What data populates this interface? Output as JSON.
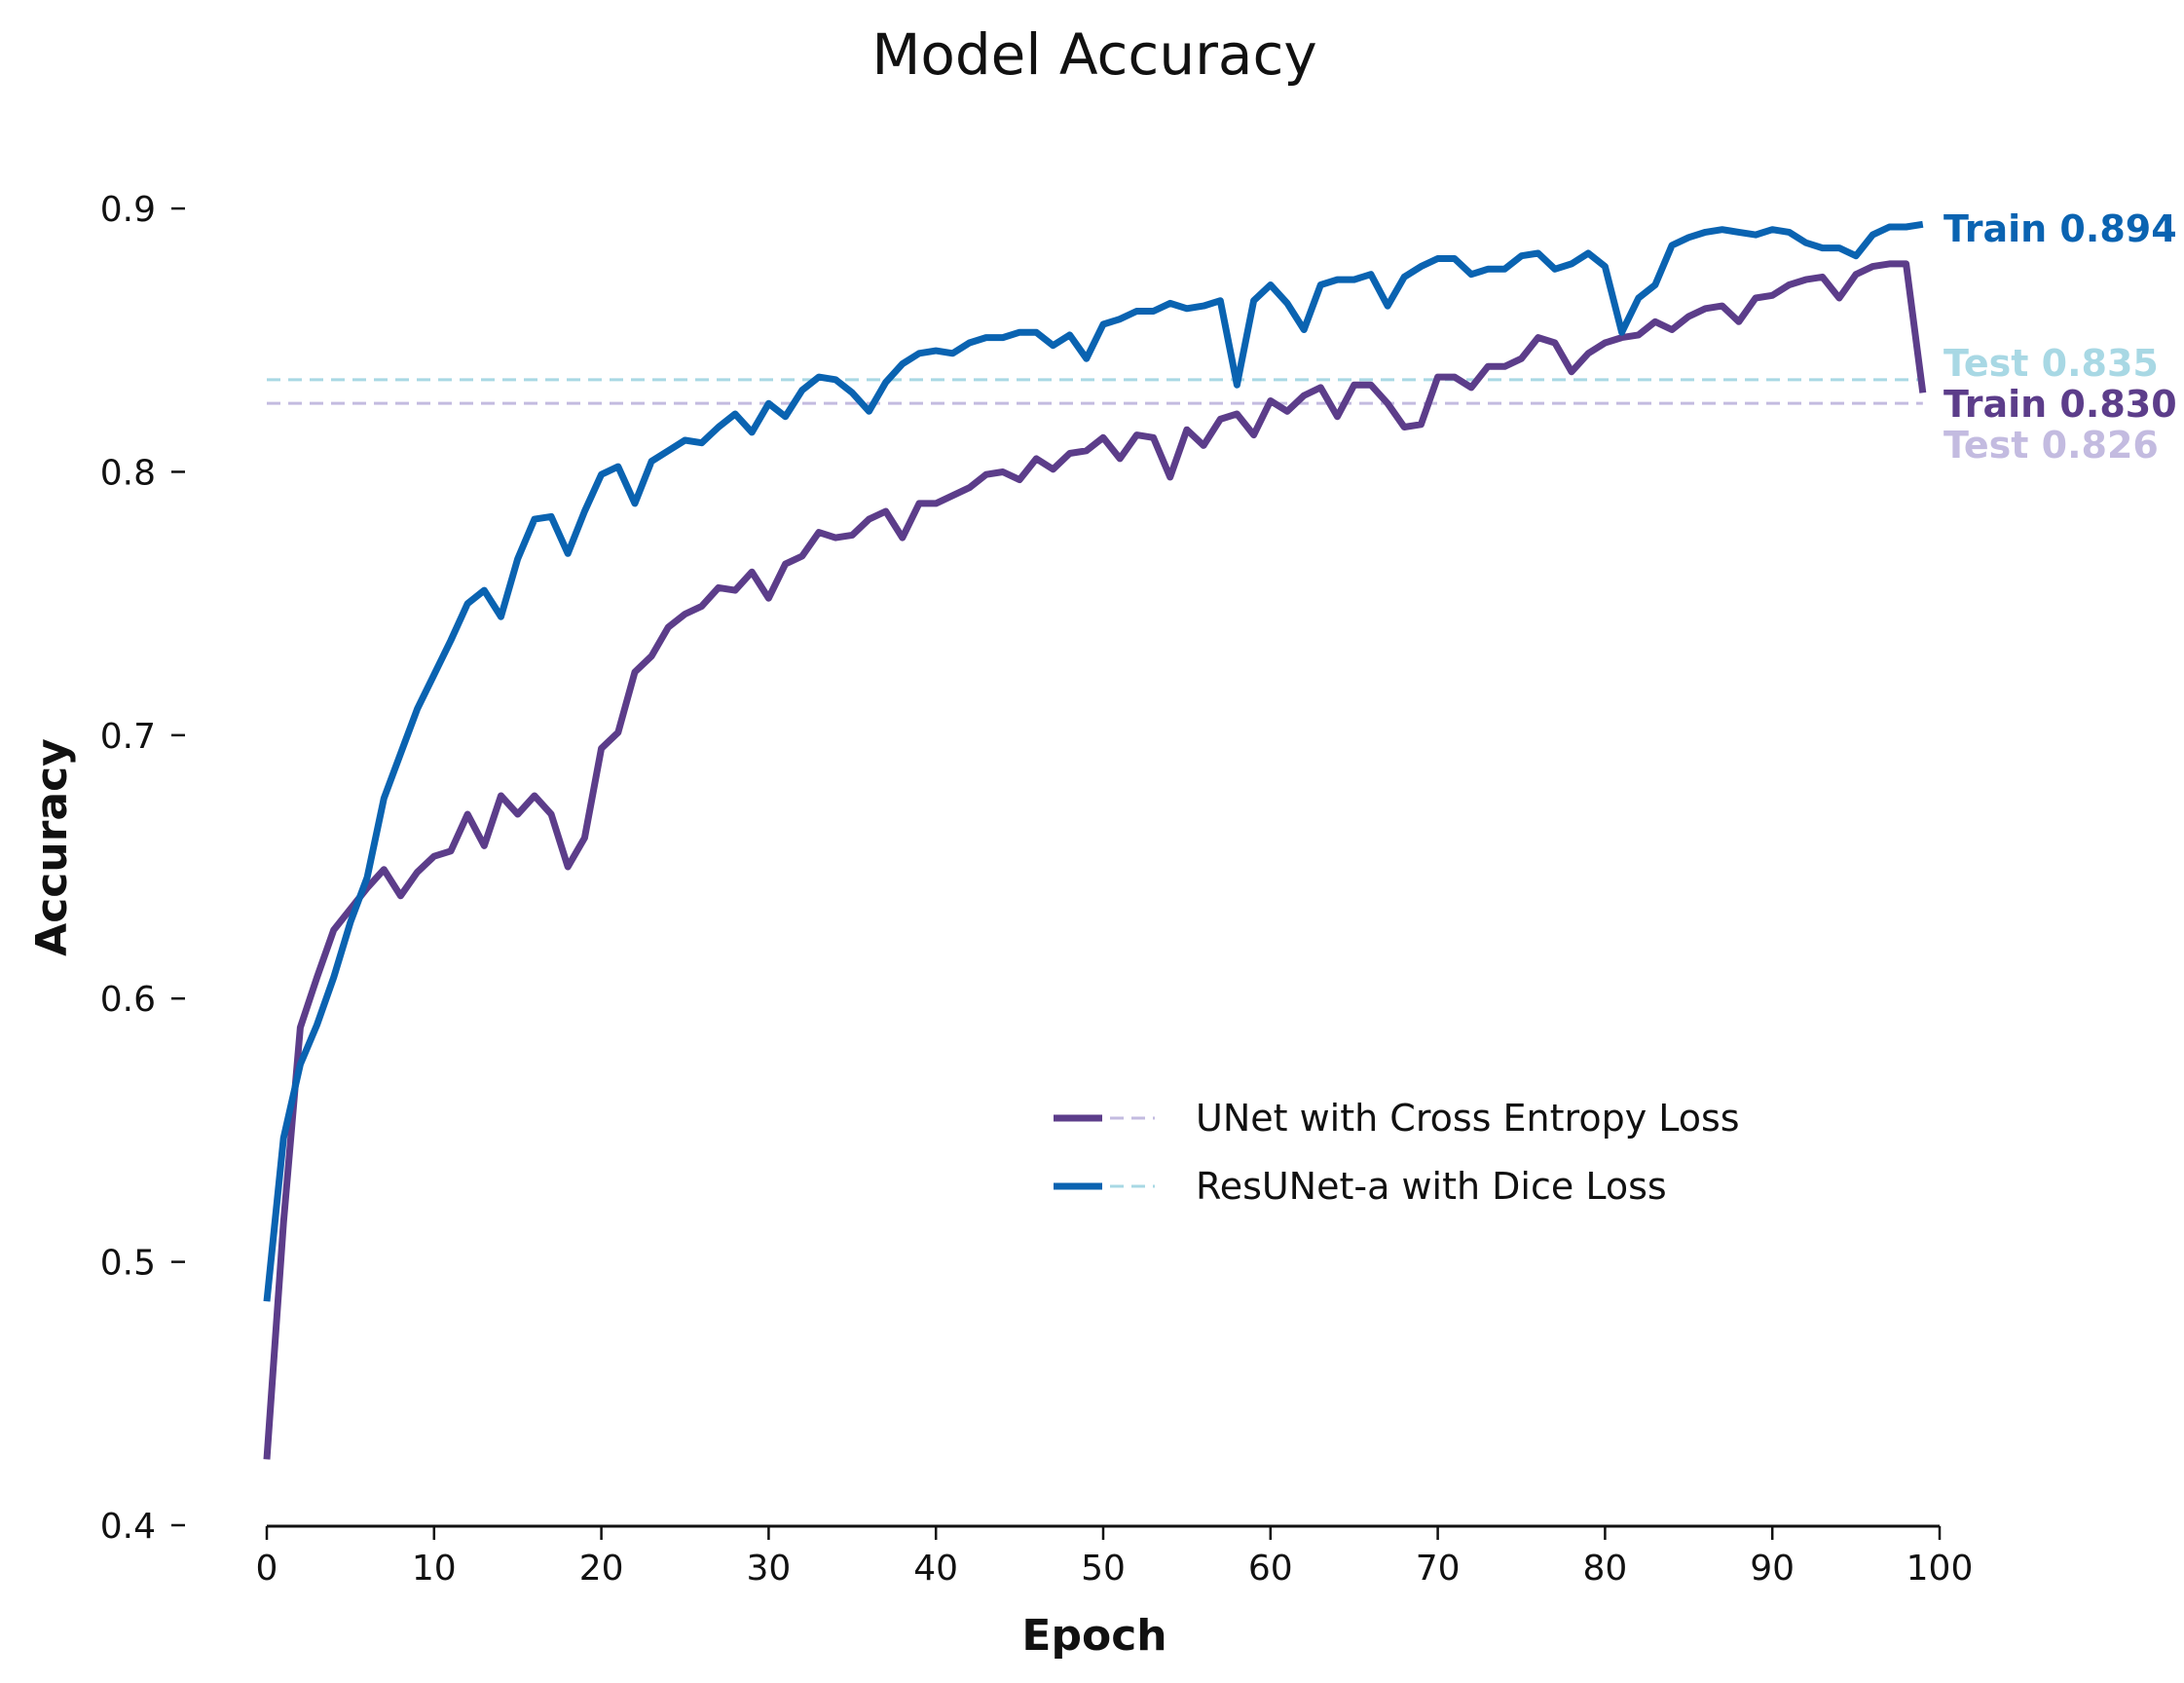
{
  "chart_data": {
    "type": "line",
    "title": "Model Accuracy",
    "xlabel": "Epoch",
    "ylabel": "Accuracy",
    "xlim": [
      0,
      100
    ],
    "ylim": [
      0.4,
      0.92
    ],
    "xticks": [
      "0",
      "10",
      "20",
      "30",
      "40",
      "50",
      "60",
      "70",
      "80",
      "90",
      "100"
    ],
    "yticks": [
      "0.4",
      "0.5",
      "0.6",
      "0.7",
      "0.8",
      "0.9"
    ],
    "grid": false,
    "legend_position": "center-right",
    "series": [
      {
        "name": "UNet with Cross Entropy Loss",
        "train_color": "#5c3d8a",
        "test_color": "#c3bbe0",
        "test_value": 0.826,
        "train_label": "Train 0.830",
        "test_label": "Test 0.826",
        "x": [
          0,
          1,
          2,
          3,
          4,
          5,
          6,
          7,
          8,
          9,
          10,
          11,
          12,
          13,
          14,
          15,
          16,
          17,
          18,
          19,
          20,
          21,
          22,
          23,
          24,
          25,
          26,
          27,
          28,
          29,
          30,
          31,
          32,
          33,
          34,
          35,
          36,
          37,
          38,
          39,
          40,
          41,
          42,
          43,
          44,
          45,
          46,
          47,
          48,
          49,
          50,
          51,
          52,
          53,
          54,
          55,
          56,
          57,
          58,
          59,
          60,
          61,
          62,
          63,
          64,
          65,
          66,
          67,
          68,
          69,
          70,
          71,
          72,
          73,
          74,
          75,
          76,
          77,
          78,
          79,
          80,
          81,
          82,
          83,
          84,
          85,
          86,
          87,
          88,
          89,
          90,
          91,
          92,
          93,
          94,
          95,
          96,
          97,
          98,
          99
        ],
        "y": [
          0.425,
          0.515,
          0.589,
          0.608,
          0.626,
          0.634,
          0.642,
          0.649,
          0.639,
          0.648,
          0.654,
          0.656,
          0.67,
          0.658,
          0.677,
          0.67,
          0.677,
          0.67,
          0.65,
          0.661,
          0.695,
          0.701,
          0.724,
          0.73,
          0.741,
          0.746,
          0.749,
          0.756,
          0.755,
          0.762,
          0.752,
          0.765,
          0.768,
          0.777,
          0.775,
          0.776,
          0.782,
          0.785,
          0.775,
          0.788,
          0.788,
          0.791,
          0.794,
          0.799,
          0.8,
          0.797,
          0.805,
          0.801,
          0.807,
          0.808,
          0.813,
          0.805,
          0.814,
          0.813,
          0.798,
          0.816,
          0.81,
          0.82,
          0.822,
          0.814,
          0.827,
          0.823,
          0.829,
          0.832,
          0.821,
          0.833,
          0.833,
          0.826,
          0.817,
          0.818,
          0.836,
          0.836,
          0.832,
          0.84,
          0.84,
          0.843,
          0.851,
          0.849,
          0.838,
          0.845,
          0.849,
          0.851,
          0.852,
          0.857,
          0.854,
          0.859,
          0.862,
          0.863,
          0.857,
          0.866,
          0.867,
          0.871,
          0.873,
          0.874,
          0.866,
          0.875,
          0.878,
          0.879,
          0.879,
          0.83
        ]
      },
      {
        "name": "ResUNet-a with Dice Loss",
        "train_color": "#0a63b1",
        "test_color": "#a8d8e4",
        "test_value": 0.835,
        "train_label": "Train 0.894",
        "test_label": "Test 0.835",
        "x": [
          0,
          1,
          2,
          3,
          4,
          5,
          6,
          7,
          8,
          9,
          10,
          11,
          12,
          13,
          14,
          15,
          16,
          17,
          18,
          19,
          20,
          21,
          22,
          23,
          24,
          25,
          26,
          27,
          28,
          29,
          30,
          31,
          32,
          33,
          34,
          35,
          36,
          37,
          38,
          39,
          40,
          41,
          42,
          43,
          44,
          45,
          46,
          47,
          48,
          49,
          50,
          51,
          52,
          53,
          54,
          55,
          56,
          57,
          58,
          59,
          60,
          61,
          62,
          63,
          64,
          65,
          66,
          67,
          68,
          69,
          70,
          71,
          72,
          73,
          74,
          75,
          76,
          77,
          78,
          79,
          80,
          81,
          82,
          83,
          84,
          85,
          86,
          87,
          88,
          89,
          90,
          91,
          92,
          93,
          94,
          95,
          96,
          97,
          98,
          99
        ],
        "y": [
          0.485,
          0.547,
          0.575,
          0.59,
          0.608,
          0.629,
          0.646,
          0.676,
          0.693,
          0.71,
          0.723,
          0.736,
          0.75,
          0.755,
          0.745,
          0.767,
          0.782,
          0.783,
          0.769,
          0.785,
          0.799,
          0.802,
          0.788,
          0.804,
          0.808,
          0.812,
          0.811,
          0.817,
          0.822,
          0.815,
          0.826,
          0.821,
          0.831,
          0.836,
          0.835,
          0.83,
          0.823,
          0.834,
          0.841,
          0.845,
          0.846,
          0.845,
          0.849,
          0.851,
          0.851,
          0.853,
          0.853,
          0.848,
          0.852,
          0.843,
          0.856,
          0.858,
          0.861,
          0.861,
          0.864,
          0.862,
          0.863,
          0.865,
          0.833,
          0.865,
          0.871,
          0.864,
          0.854,
          0.871,
          0.873,
          0.873,
          0.875,
          0.863,
          0.874,
          0.878,
          0.881,
          0.881,
          0.875,
          0.877,
          0.877,
          0.882,
          0.883,
          0.877,
          0.879,
          0.883,
          0.878,
          0.853,
          0.866,
          0.871,
          0.886,
          0.889,
          0.891,
          0.892,
          0.891,
          0.89,
          0.892,
          0.891,
          0.887,
          0.885,
          0.885,
          0.882,
          0.89,
          0.893,
          0.893,
          0.894
        ]
      }
    ]
  }
}
